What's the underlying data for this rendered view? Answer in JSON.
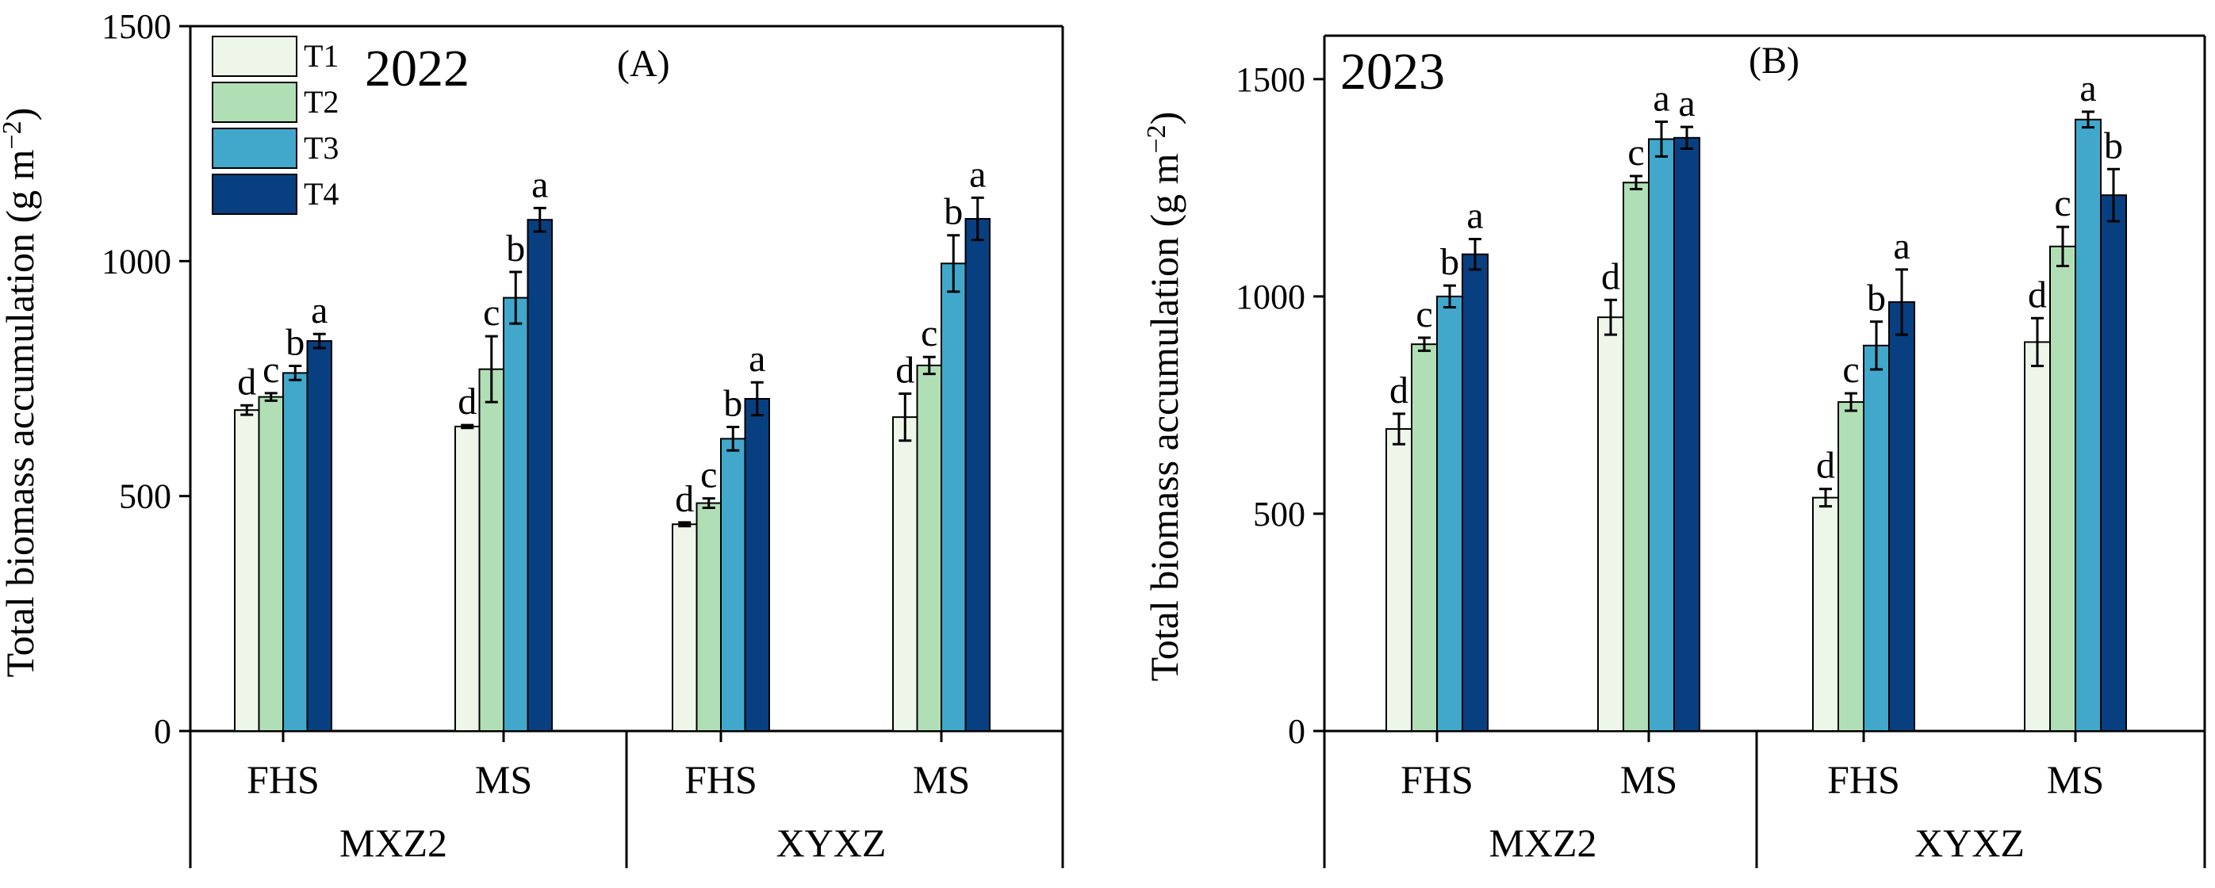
{
  "chart_data": [
    {
      "type": "bar",
      "panel_label": "(A)",
      "year": "2022",
      "ylabel": "Total biomass accumulation (g m",
      "ylabel_sup": "−2",
      "ylabel_close": ")",
      "ylim": [
        0,
        1500
      ],
      "yticks": [
        "0",
        "500",
        "1000",
        "1500"
      ],
      "groups": [
        {
          "cultivar": "MXZ2",
          "categories": [
            "FHS",
            "MS"
          ]
        },
        {
          "cultivar": "XYXZ",
          "categories": [
            "FHS",
            "MS"
          ]
        }
      ],
      "series": [
        {
          "name": "T1",
          "color": "#eef6ea",
          "values": [
            683,
            648,
            440,
            668
          ],
          "errors": [
            10,
            3,
            4,
            50
          ],
          "letters": [
            "d",
            "d",
            "d",
            "d"
          ]
        },
        {
          "name": "T2",
          "color": "#b1dfb5",
          "values": [
            711,
            770,
            485,
            778
          ],
          "errors": [
            8,
            70,
            10,
            18
          ],
          "letters": [
            "c",
            "c",
            "c",
            "c"
          ]
        },
        {
          "name": "T3",
          "color": "#41a8cc",
          "values": [
            762,
            922,
            622,
            995
          ],
          "errors": [
            15,
            55,
            25,
            60
          ],
          "letters": [
            "b",
            "b",
            "b",
            "b"
          ]
        },
        {
          "name": "T4",
          "color": "#083f80",
          "values": [
            830,
            1088,
            707,
            1090
          ],
          "errors": [
            15,
            25,
            35,
            45
          ],
          "letters": [
            "a",
            "a",
            "a",
            "a"
          ]
        }
      ]
    },
    {
      "type": "bar",
      "panel_label": "(B)",
      "year": "2023",
      "ylabel": "Total biomass accumulation (g m",
      "ylabel_sup": "−2",
      "ylabel_close": ")",
      "ylim": [
        0,
        1600
      ],
      "yticks": [
        "0",
        "500",
        "1000",
        "1500"
      ],
      "groups": [
        {
          "cultivar": "MXZ2",
          "categories": [
            "FHS",
            "MS"
          ]
        },
        {
          "cultivar": "XYXZ",
          "categories": [
            "FHS",
            "MS"
          ]
        }
      ],
      "series": [
        {
          "name": "T1",
          "color": "#eef6ea",
          "values": [
            695,
            952,
            537,
            895
          ],
          "errors": [
            35,
            40,
            20,
            55
          ],
          "letters": [
            "d",
            "d",
            "d",
            "d"
          ]
        },
        {
          "name": "T2",
          "color": "#b1dfb5",
          "values": [
            890,
            1262,
            757,
            1115
          ],
          "errors": [
            15,
            15,
            20,
            45
          ],
          "letters": [
            "c",
            "c",
            "c",
            "c"
          ]
        },
        {
          "name": "T3",
          "color": "#41a8cc",
          "values": [
            1000,
            1362,
            887,
            1407
          ],
          "errors": [
            25,
            40,
            55,
            18
          ],
          "letters": [
            "b",
            "a",
            "b",
            "a"
          ]
        },
        {
          "name": "T4",
          "color": "#083f80",
          "values": [
            1097,
            1365,
            987,
            1233
          ],
          "errors": [
            35,
            25,
            75,
            60
          ],
          "letters": [
            "a",
            "a",
            "a",
            "b"
          ]
        }
      ]
    }
  ]
}
